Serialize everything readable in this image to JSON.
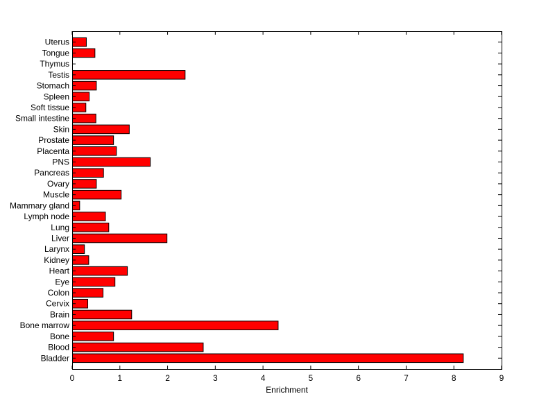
{
  "chart_data": {
    "type": "bar",
    "orientation": "horizontal",
    "title": "",
    "xlabel": "Enrichment",
    "ylabel": "",
    "xlim": [
      0,
      9
    ],
    "xticks": [
      0,
      1,
      2,
      3,
      4,
      5,
      6,
      7,
      8,
      9
    ],
    "grid": false,
    "bar_color": "#ff0000",
    "bar_edge_color": "#000000",
    "categories": [
      "Bladder",
      "Blood",
      "Bone",
      "Bone marrow",
      "Brain",
      "Cervix",
      "Colon",
      "Eye",
      "Heart",
      "Kidney",
      "Larynx",
      "Liver",
      "Lung",
      "Lymph node",
      "Mammary gland",
      "Muscle",
      "Ovary",
      "Pancreas",
      "PNS",
      "Placenta",
      "Prostate",
      "Skin",
      "Small intestine",
      "Soft tissue",
      "Spleen",
      "Stomach",
      "Testis",
      "Thymus",
      "Tongue",
      "Uterus"
    ],
    "values": [
      8.19,
      2.74,
      0.86,
      4.31,
      1.24,
      0.32,
      0.64,
      0.89,
      1.15,
      0.34,
      0.25,
      1.98,
      0.76,
      0.69,
      0.15,
      1.02,
      0.5,
      0.65,
      1.63,
      0.92,
      0.86,
      1.19,
      0.49,
      0.28,
      0.35,
      0.5,
      2.36,
      0.0,
      0.47,
      0.29
    ]
  }
}
